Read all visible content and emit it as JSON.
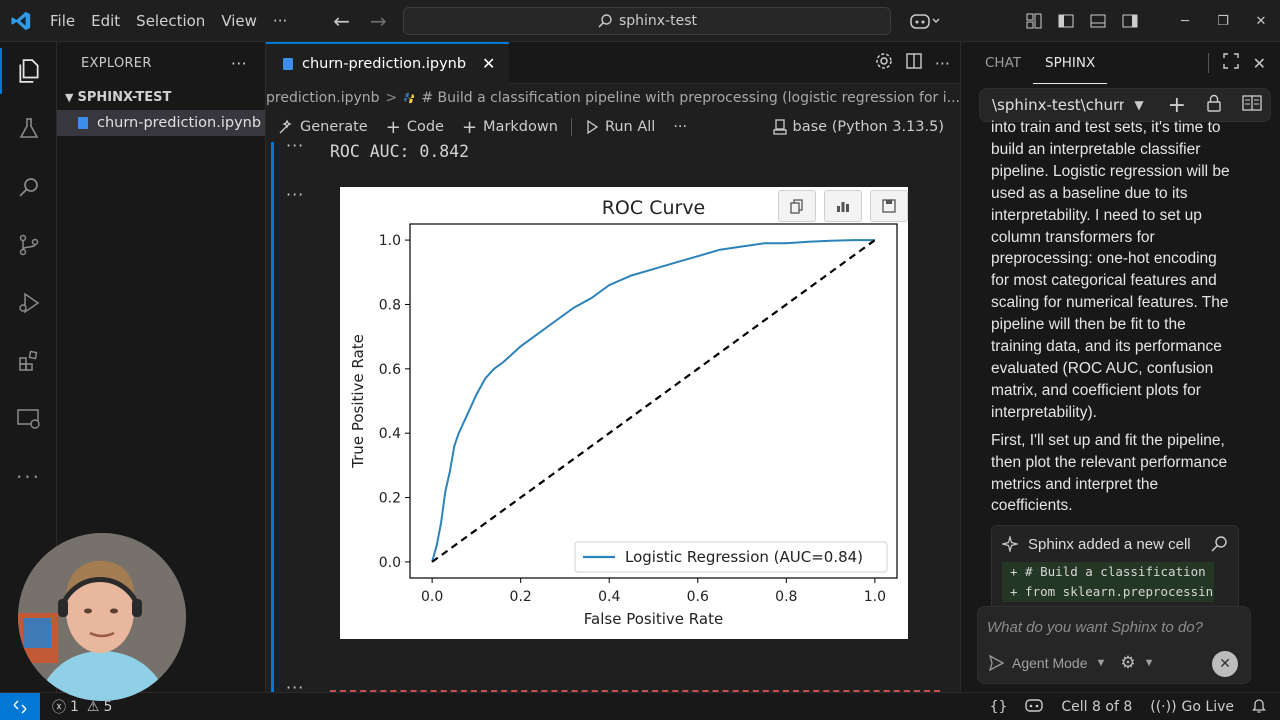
{
  "titlebar": {
    "menu": [
      "File",
      "Edit",
      "Selection",
      "View"
    ],
    "more": "···",
    "search_text": "sphinx-test"
  },
  "sidebar": {
    "title": "EXPLORER",
    "folder": "SPHINX-TEST",
    "file": "churn-prediction.ipynb"
  },
  "editor": {
    "tab_label": "churn-prediction.ipynb",
    "breadcrumb_file": "prediction.ipynb",
    "breadcrumb_sep": ">",
    "breadcrumb_cell": "# Build a classification pipeline with preprocessing (logistic regression for i...",
    "toolbar": {
      "generate": "Generate",
      "code": "Code",
      "markdown": "Markdown",
      "run_all": "Run All",
      "more": "···",
      "kernel": "base (Python 3.13.5)"
    },
    "output_text": "ROC AUC: 0.842"
  },
  "chart_data": {
    "type": "line",
    "title": "ROC Curve",
    "xlabel": "False Positive Rate",
    "ylabel": "True Positive Rate",
    "xlim": [
      0.0,
      1.0
    ],
    "ylim": [
      0.0,
      1.0
    ],
    "xticks": [
      "0.0",
      "0.2",
      "0.4",
      "0.6",
      "0.8",
      "1.0"
    ],
    "yticks": [
      "0.0",
      "0.2",
      "0.4",
      "0.6",
      "0.8",
      "1.0"
    ],
    "legend_position": "lower-right",
    "grid": false,
    "series": [
      {
        "name": "Logistic Regression (AUC=0.84)",
        "color": "#2b83ba",
        "x": [
          0.0,
          0.01,
          0.02,
          0.03,
          0.04,
          0.05,
          0.06,
          0.08,
          0.1,
          0.12,
          0.14,
          0.16,
          0.2,
          0.24,
          0.28,
          0.32,
          0.36,
          0.4,
          0.45,
          0.5,
          0.55,
          0.6,
          0.65,
          0.7,
          0.75,
          0.8,
          0.85,
          0.9,
          0.95,
          1.0
        ],
        "y": [
          0.0,
          0.05,
          0.12,
          0.22,
          0.28,
          0.36,
          0.4,
          0.46,
          0.52,
          0.57,
          0.6,
          0.62,
          0.67,
          0.71,
          0.75,
          0.79,
          0.82,
          0.86,
          0.89,
          0.91,
          0.93,
          0.95,
          0.97,
          0.98,
          0.99,
          0.99,
          0.995,
          0.998,
          1.0,
          1.0
        ]
      },
      {
        "name": "",
        "color": "#000000",
        "style": "dashed",
        "x": [
          0.0,
          1.0
        ],
        "y": [
          0.0,
          1.0
        ]
      }
    ]
  },
  "panel": {
    "tabs": [
      "CHAT",
      "SPHINX"
    ],
    "active_tab": "SPHINX",
    "workspace": "\\sphinx-test\\churn",
    "message_1": "into train and test sets, it's time to build an interpretable classifier pipeline. Logistic regression will be used as a baseline due to its interpretability. I need to set up column transformers for preprocessing: one-hot encoding for most categorical features and scaling for numerical features. The pipeline will then be fit to the training data, and its performance evaluated (ROC AUC, confusion matrix, and coefficient plots for interpretability).",
    "message_2": "First, I'll set up and fit the pipeline, then plot the relevant performance metrics and interpret the coefficients.",
    "card_title": "Sphinx added a new cell",
    "code_lines": [
      "+ # Build a classification",
      "+ from sklearn.preprocessin"
    ],
    "prompt_placeholder": "What do you want Sphinx to do?",
    "mode": "Agent Mode"
  },
  "statusbar": {
    "errors": "1",
    "warnings": "5",
    "cell_position": "Cell 8 of 8",
    "go_live": "Go Live"
  },
  "colors": {
    "accent": "#0078d4",
    "roc_line": "#2b83ba"
  }
}
